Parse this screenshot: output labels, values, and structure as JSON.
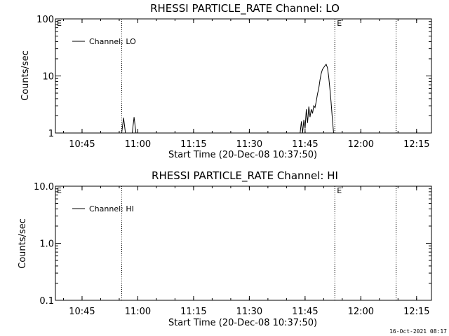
{
  "footer_timestamp": "16-Oct-2021 08:17",
  "chart_data": [
    {
      "type": "line",
      "title": "RHESSI PARTICLE_RATE Channel: LO",
      "xlabel": "Start Time (20-Dec-08 10:37:50)",
      "ylabel": "Counts/sec",
      "y_scale": "log",
      "ylim": [
        1,
        100
      ],
      "y_ticks": [
        1,
        10,
        100
      ],
      "y_tick_labels": [
        "1",
        "10",
        "100"
      ],
      "xlim": [
        "10:37:50",
        "12:19:00"
      ],
      "x_ticks": [
        "10:45",
        "11:00",
        "11:15",
        "11:30",
        "11:45",
        "12:00",
        "12:15"
      ],
      "legend": {
        "label": "Channel: LO",
        "position": "top-left"
      },
      "marker_lines": [
        {
          "time": "10:55:40",
          "label": ""
        },
        {
          "time": "11:53:00",
          "label": "E"
        },
        {
          "time": "12:09:30",
          "label": ""
        }
      ],
      "corner_label": "E",
      "series": [
        {
          "name": "Channel: LO",
          "x": [
            "10:55:40",
            "10:56:10",
            "10:56:40",
            "10:58:30",
            "10:59:00",
            "10:59:30",
            "11:43:40",
            "11:44:00",
            "11:44:20",
            "11:44:40",
            "11:45:00",
            "11:45:20",
            "11:45:40",
            "11:46:00",
            "11:46:20",
            "11:46:40",
            "11:47:00",
            "11:47:20",
            "11:47:40",
            "11:48:00",
            "11:48:20",
            "11:48:40",
            "11:49:00",
            "11:49:20",
            "11:49:40",
            "11:50:00",
            "11:50:20",
            "11:50:40",
            "11:51:00",
            "11:51:20",
            "11:51:40",
            "11:52:00",
            "11:52:20",
            "11:52:40"
          ],
          "y": [
            1.0,
            1.85,
            1.0,
            1.0,
            1.9,
            1.0,
            1.0,
            1.6,
            1.0,
            1.7,
            1.2,
            2.6,
            1.5,
            2.9,
            1.9,
            2.6,
            2.2,
            3.0,
            2.8,
            3.6,
            4.8,
            6.0,
            8.5,
            11,
            13,
            14,
            15,
            16,
            14,
            10,
            6,
            3.5,
            1.8,
            1.0
          ]
        }
      ]
    },
    {
      "type": "line",
      "title": "RHESSI PARTICLE_RATE Channel: HI",
      "xlabel": "Start Time (20-Dec-08 10:37:50)",
      "ylabel": "Counts/sec",
      "y_scale": "log",
      "ylim": [
        0.1,
        10
      ],
      "y_ticks": [
        0.1,
        1,
        10
      ],
      "y_tick_labels": [
        "0.1",
        "1.0",
        "10.0"
      ],
      "xlim": [
        "10:37:50",
        "12:19:00"
      ],
      "x_ticks": [
        "10:45",
        "11:00",
        "11:15",
        "11:30",
        "11:45",
        "12:00",
        "12:15"
      ],
      "legend": {
        "label": "Channel: HI",
        "position": "top-left"
      },
      "marker_lines": [
        {
          "time": "10:55:40",
          "label": ""
        },
        {
          "time": "11:53:00",
          "label": "E"
        },
        {
          "time": "12:09:30",
          "label": ""
        }
      ],
      "corner_label": "E",
      "series": [
        {
          "name": "Channel: HI",
          "x": [],
          "y": []
        }
      ]
    }
  ]
}
